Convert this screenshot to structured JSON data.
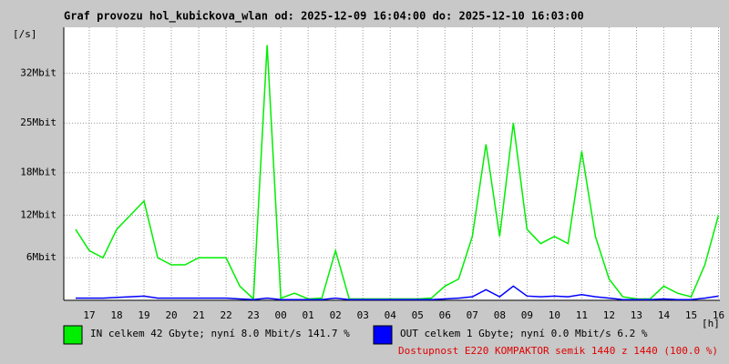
{
  "chart_data": {
    "type": "line",
    "title": "Graf provozu hol_kubickova_wlan od: 2025-12-09 16:04:00 do: 2025-12-10 16:03:00",
    "y_label": "[/s]",
    "x_label": "[h]",
    "xlim": [
      16.067,
      40.05
    ],
    "xticks": [
      {
        "value": 17,
        "label": "17"
      },
      {
        "value": 18,
        "label": "18"
      },
      {
        "value": 19,
        "label": "19"
      },
      {
        "value": 20,
        "label": "20"
      },
      {
        "value": 21,
        "label": "21"
      },
      {
        "value": 22,
        "label": "22"
      },
      {
        "value": 23,
        "label": "23"
      },
      {
        "value": 24,
        "label": "00"
      },
      {
        "value": 25,
        "label": "01"
      },
      {
        "value": 26,
        "label": "02"
      },
      {
        "value": 27,
        "label": "03"
      },
      {
        "value": 28,
        "label": "04"
      },
      {
        "value": 29,
        "label": "05"
      },
      {
        "value": 30,
        "label": "06"
      },
      {
        "value": 31,
        "label": "07"
      },
      {
        "value": 32,
        "label": "08"
      },
      {
        "value": 33,
        "label": "09"
      },
      {
        "value": 34,
        "label": "10"
      },
      {
        "value": 35,
        "label": "11"
      },
      {
        "value": 36,
        "label": "12"
      },
      {
        "value": 37,
        "label": "13"
      },
      {
        "value": 38,
        "label": "14"
      },
      {
        "value": 39,
        "label": "15"
      },
      {
        "value": 40,
        "label": "16"
      }
    ],
    "ylim": [
      0,
      38.5
    ],
    "yticks": [
      {
        "value": 6,
        "label": "6Mbit"
      },
      {
        "value": 12,
        "label": "12Mbit"
      },
      {
        "value": 18,
        "label": "18Mbit"
      },
      {
        "value": 25,
        "label": "25Mbit"
      },
      {
        "value": 32,
        "label": "32Mbit"
      }
    ],
    "grid": true,
    "x": [
      16.5,
      17,
      17.5,
      18,
      18.5,
      19,
      19.5,
      20,
      20.5,
      21,
      21.5,
      22,
      22.5,
      23,
      23.5,
      24,
      24.5,
      25,
      25.5,
      26,
      26.5,
      27,
      27.5,
      28,
      28.5,
      29,
      29.5,
      30,
      30.5,
      31,
      31.5,
      32,
      32.5,
      33,
      33.5,
      34,
      34.5,
      35,
      35.5,
      36,
      36.5,
      37,
      37.5,
      38,
      38.5,
      39,
      39.5,
      40
    ],
    "series": [
      {
        "name": "IN celkem 42 Gbyte; nyní   8.0 Mbit/s 141.7 %",
        "color": "#00ee00",
        "values": [
          10,
          7,
          6,
          10,
          12,
          14,
          6,
          5,
          5,
          6,
          6,
          6,
          2,
          0.2,
          36,
          0.3,
          1,
          0.2,
          0.3,
          7,
          0.2,
          0.2,
          0.2,
          0.2,
          0.2,
          0.2,
          0.3,
          2,
          3,
          9,
          22,
          9,
          25,
          10,
          8,
          9,
          8,
          21,
          9,
          3,
          0.5,
          0.2,
          0.2,
          2,
          1,
          0.5,
          5,
          12
        ]
      },
      {
        "name": "OUT celkem 1 Gbyte; nyní   0.0 Mbit/s 6.2 %",
        "color": "#0000ff",
        "values": [
          0.3,
          0.3,
          0.3,
          0.4,
          0.5,
          0.6,
          0.3,
          0.3,
          0.3,
          0.3,
          0.3,
          0.3,
          0.2,
          0.1,
          0.3,
          0.1,
          0.1,
          0.1,
          0.1,
          0.3,
          0.1,
          0.1,
          0.1,
          0.1,
          0.1,
          0.1,
          0.1,
          0.2,
          0.3,
          0.5,
          1.5,
          0.5,
          2,
          0.6,
          0.5,
          0.6,
          0.5,
          0.8,
          0.5,
          0.3,
          0.1,
          0.1,
          0.1,
          0.2,
          0.1,
          0.1,
          0.3,
          0.6
        ]
      }
    ],
    "availability": "Dostupnost E220 KOMPAKTOR semik 1440 z 1440 (100.0 %)"
  }
}
